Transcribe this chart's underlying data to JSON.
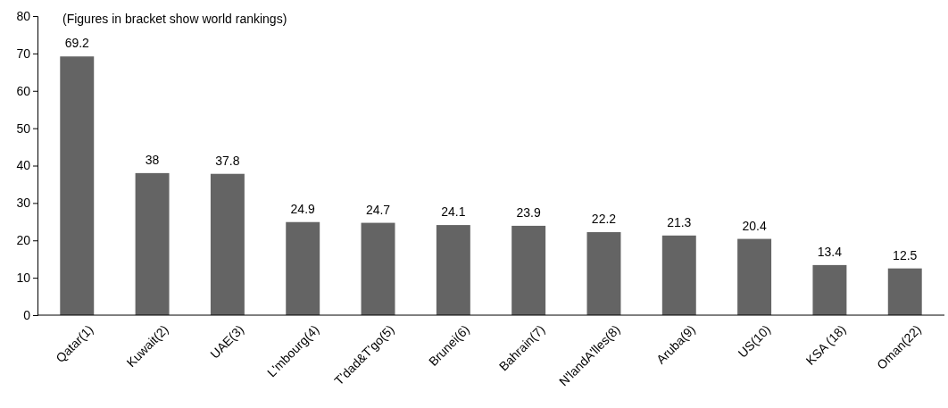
{
  "chart_data": {
    "type": "bar",
    "categories": [
      "Qatar(1)",
      "Kuwait(2)",
      "UAE(3)",
      "L'mbourg(4)",
      "T'dad&T'go(5)",
      "Brunei(6)",
      "Bahrain(7)",
      "N'landA'lles(8)",
      "Aruba(9)",
      "US(10)",
      "KSA (18)",
      "Oman(22)"
    ],
    "values": [
      69.2,
      38,
      37.8,
      24.9,
      24.7,
      24.1,
      23.9,
      22.2,
      21.3,
      20.4,
      13.4,
      12.5
    ],
    "color": "#646464",
    "ylim": [
      0,
      80
    ],
    "yticks": [
      0,
      10,
      20,
      30,
      40,
      50,
      60,
      70,
      80
    ],
    "grid": false,
    "data_labels": true,
    "annotations": [
      "(Figures in bracket show world rankings)"
    ]
  }
}
